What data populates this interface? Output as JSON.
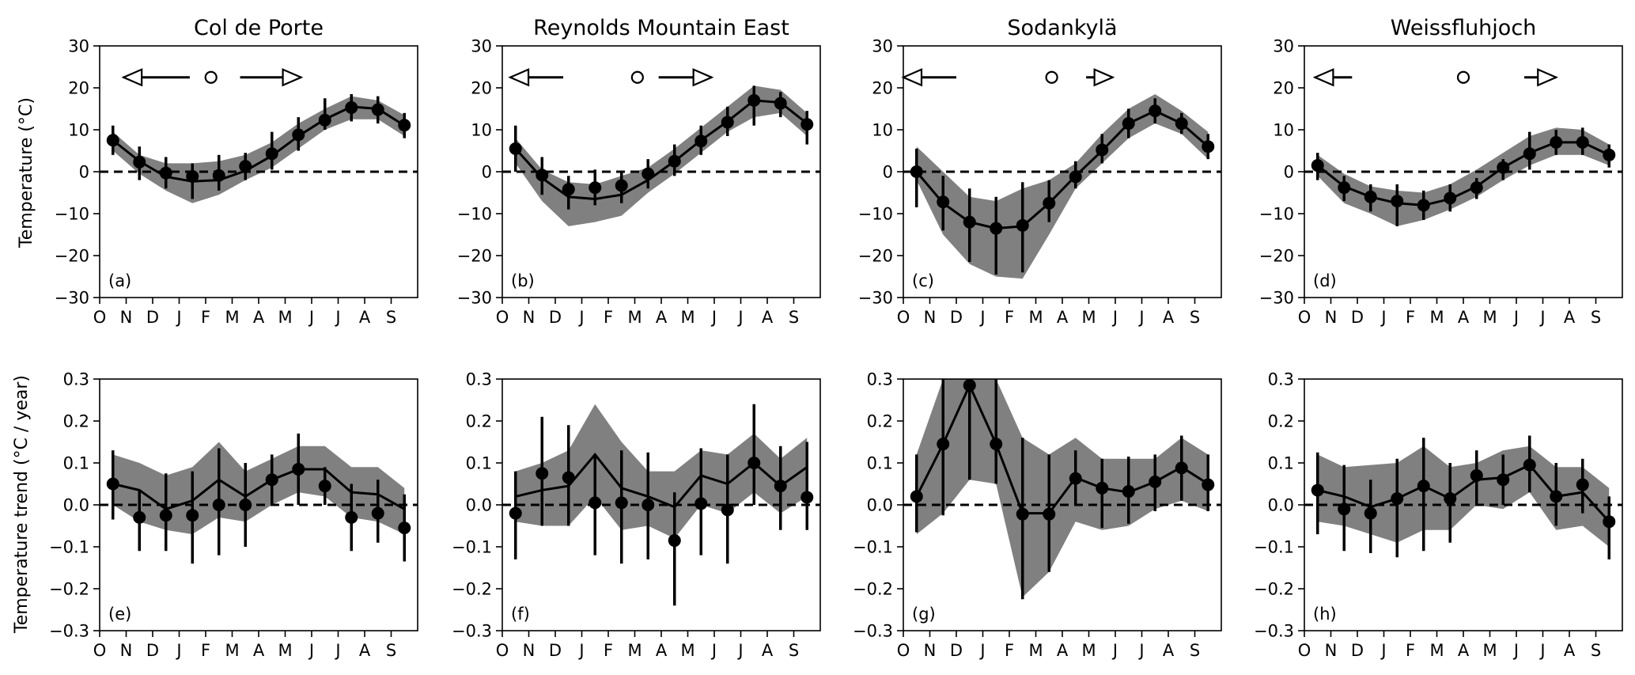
{
  "figure": {
    "row_ylabels": [
      "Temperature ($^\\circ$C)",
      "Temperature trend ($^\\circ$C / year)"
    ],
    "row_ylabels_display": [
      "Temperature (°C)",
      "Temperature trend (°C / year)"
    ],
    "month_ticks": [
      "O",
      "N",
      "D",
      "J",
      "F",
      "M",
      "A",
      "M",
      "J",
      "J",
      "A",
      "S"
    ],
    "colors": {
      "band": "#808080",
      "line": "#000000",
      "zero_line": "#000000"
    }
  },
  "chart_data": [
    {
      "type": "line",
      "id": "a",
      "panel_label": "(a)",
      "title": "Col de Porte",
      "ylim": [
        -30,
        30
      ],
      "yticks": [
        30,
        20,
        10,
        0,
        -10,
        -20,
        -30
      ],
      "x_month_offset": [
        0.5,
        1.5,
        2.5,
        3.5,
        4.5,
        5.5,
        6.5,
        7.5,
        8.5,
        9.5,
        10.5,
        11.5
      ],
      "series": [
        {
          "line": [
            7.5,
            2.5,
            -1.2,
            -2.3,
            -2.0,
            0.2,
            3.8,
            8.5,
            12.5,
            15.5,
            15.0,
            11.0
          ]
        },
        {
          "band_upper": [
            9.5,
            4.0,
            2.0,
            2.0,
            2.5,
            4.0,
            7.0,
            11.5,
            15.0,
            18.0,
            17.0,
            13.5
          ]
        },
        {
          "band_lower": [
            5.0,
            -0.5,
            -4.5,
            -7.5,
            -5.5,
            -2.0,
            1.0,
            5.5,
            10.0,
            12.5,
            12.5,
            8.5
          ]
        },
        {
          "point_x": [
            0.5,
            1.5,
            2.5,
            3.5,
            4.5,
            5.5,
            6.5,
            7.5,
            8.5,
            9.5,
            10.5,
            11.5
          ]
        },
        {
          "point_y": [
            7.5,
            2.3,
            -0.3,
            -1.1,
            -0.9,
            1.3,
            4.3,
            8.8,
            12.3,
            15.3,
            14.8,
            11.1
          ]
        },
        {
          "err_low": [
            4.0,
            -2.0,
            -4.0,
            -6.5,
            -4.5,
            -2.0,
            0.5,
            5.0,
            10.0,
            12.0,
            11.5,
            8.0
          ]
        },
        {
          "err_high": [
            11.0,
            6.0,
            3.5,
            2.0,
            4.0,
            4.5,
            9.5,
            13.0,
            17.5,
            18.5,
            18.0,
            14.0
          ]
        }
      ],
      "markers": {
        "left_arrow": [
          0.9,
          3.4
        ],
        "circle": 4.2,
        "right_arrow": [
          5.3,
          7.6
        ],
        "y": 22.5
      }
    },
    {
      "type": "line",
      "id": "b",
      "panel_label": "(b)",
      "title": "Reynolds Mountain East",
      "ylim": [
        -30,
        30
      ],
      "yticks": [
        30,
        20,
        10,
        0,
        -10,
        -20,
        -30
      ],
      "series": [
        {
          "line": [
            5.5,
            -1.5,
            -6.0,
            -6.5,
            -5.5,
            -2.0,
            2.5,
            7.5,
            12.0,
            17.0,
            16.5,
            11.5
          ]
        },
        {
          "band_upper": [
            8.0,
            0.5,
            -2.5,
            -3.0,
            -1.0,
            1.0,
            5.5,
            10.5,
            15.5,
            20.5,
            19.5,
            14.0
          ]
        },
        {
          "band_lower": [
            2.0,
            -7.0,
            -13.0,
            -12.0,
            -10.5,
            -5.0,
            -0.5,
            4.5,
            9.5,
            13.0,
            14.0,
            8.5
          ]
        },
        {
          "point_x": [
            0.5,
            1.5,
            2.5,
            3.5,
            4.5,
            5.5,
            6.5,
            7.5,
            8.5,
            9.5,
            10.5,
            11.5
          ]
        },
        {
          "point_y": [
            5.5,
            -0.8,
            -4.2,
            -3.8,
            -3.3,
            -0.5,
            2.5,
            7.3,
            11.8,
            17.0,
            16.3,
            11.3
          ]
        },
        {
          "err_low": [
            0.0,
            -5.5,
            -9.0,
            -8.0,
            -7.5,
            -4.0,
            -1.0,
            4.0,
            8.5,
            11.0,
            13.0,
            6.5
          ]
        },
        {
          "err_high": [
            11.0,
            3.5,
            -1.0,
            0.5,
            0.0,
            3.0,
            6.5,
            11.0,
            15.5,
            20.5,
            19.0,
            14.5
          ]
        }
      ],
      "markers": {
        "left_arrow": [
          0.3,
          2.3
        ],
        "circle": 5.1,
        "right_arrow": [
          5.9,
          7.9
        ],
        "y": 22.5
      }
    },
    {
      "type": "line",
      "id": "c",
      "panel_label": "(c)",
      "title": "Sodankylä",
      "ylim": [
        -30,
        30
      ],
      "yticks": [
        30,
        20,
        10,
        0,
        -10,
        -20,
        -30
      ],
      "series": [
        {
          "line": [
            0.0,
            -7.5,
            -12.0,
            -13.5,
            -13.0,
            -7.5,
            -1.0,
            5.0,
            11.5,
            14.5,
            11.5,
            6.0
          ]
        },
        {
          "band_upper": [
            6.0,
            0.0,
            -6.0,
            -7.0,
            -4.0,
            -2.0,
            2.0,
            9.0,
            15.0,
            18.5,
            14.5,
            9.5
          ]
        },
        {
          "band_lower": [
            -2.0,
            -15.0,
            -22.0,
            -25.0,
            -25.5,
            -15.0,
            -4.0,
            2.0,
            8.0,
            11.5,
            9.0,
            3.0
          ]
        },
        {
          "point_x": [
            0.5,
            1.5,
            2.5,
            3.5,
            4.5,
            5.5,
            6.5,
            7.5,
            8.5,
            9.5,
            10.5,
            11.5
          ]
        },
        {
          "point_y": [
            0.0,
            -7.2,
            -12.0,
            -13.5,
            -12.8,
            -7.5,
            -1.2,
            5.2,
            11.5,
            14.5,
            11.5,
            6.0
          ]
        },
        {
          "err_low": [
            -8.5,
            -14.0,
            -21.5,
            -24.5,
            -24.0,
            -12.0,
            -4.0,
            2.0,
            8.0,
            11.5,
            9.0,
            3.0
          ]
        },
        {
          "err_high": [
            5.5,
            -1.0,
            -4.0,
            -6.0,
            -2.5,
            -2.0,
            2.5,
            9.0,
            15.0,
            17.5,
            14.0,
            9.0
          ]
        }
      ],
      "markers": {
        "left_arrow": [
          0.0,
          2.0
        ],
        "circle": 5.6,
        "right_arrow": [
          6.9,
          7.9
        ],
        "y": 22.5
      }
    },
    {
      "type": "line",
      "id": "d",
      "panel_label": "(d)",
      "title": "Weissfluhjoch",
      "ylim": [
        -30,
        30
      ],
      "yticks": [
        30,
        20,
        10,
        0,
        -10,
        -20,
        -30
      ],
      "series": [
        {
          "line": [
            1.5,
            -3.5,
            -6.0,
            -7.5,
            -8.0,
            -6.5,
            -3.5,
            1.0,
            4.5,
            7.0,
            7.0,
            4.0
          ]
        },
        {
          "band_upper": [
            4.0,
            -0.5,
            -3.5,
            -4.5,
            -5.0,
            -3.0,
            0.5,
            4.5,
            8.5,
            10.5,
            10.0,
            6.5
          ]
        },
        {
          "band_lower": [
            -1.0,
            -7.5,
            -10.0,
            -13.0,
            -11.5,
            -9.0,
            -6.0,
            -2.0,
            1.5,
            4.0,
            4.0,
            1.5
          ]
        },
        {
          "point_x": [
            0.5,
            1.5,
            2.5,
            3.5,
            4.5,
            5.5,
            6.5,
            7.5,
            8.5,
            9.5,
            10.5,
            11.5
          ]
        },
        {
          "point_y": [
            1.5,
            -3.8,
            -6.0,
            -7.0,
            -8.0,
            -6.3,
            -3.8,
            1.0,
            4.3,
            7.0,
            7.0,
            4.0
          ]
        },
        {
          "err_low": [
            -2.0,
            -7.0,
            -9.5,
            -13.0,
            -11.5,
            -9.5,
            -6.5,
            -2.0,
            0.5,
            4.0,
            4.0,
            1.0
          ]
        },
        {
          "err_high": [
            4.5,
            -1.0,
            -3.0,
            -3.0,
            -4.5,
            -3.0,
            -1.5,
            3.0,
            9.5,
            10.0,
            10.5,
            6.5
          ]
        }
      ],
      "markers": {
        "left_arrow": [
          0.4,
          1.8
        ],
        "circle": 6.0,
        "right_arrow": [
          8.3,
          9.5
        ],
        "y": 22.5
      }
    },
    {
      "type": "line",
      "id": "e",
      "panel_label": "(e)",
      "title": "",
      "ylim": [
        -0.3,
        0.3
      ],
      "yticks": [
        0.3,
        0.2,
        0.1,
        0.0,
        -0.1,
        -0.2,
        -0.3
      ],
      "series": [
        {
          "line": [
            0.05,
            0.035,
            -0.01,
            0.01,
            0.06,
            0.02,
            0.06,
            0.085,
            0.085,
            0.03,
            0.025,
            -0.01
          ]
        },
        {
          "band_upper": [
            0.12,
            0.1,
            0.07,
            0.09,
            0.15,
            0.08,
            0.11,
            0.14,
            0.14,
            0.09,
            0.09,
            0.04
          ]
        },
        {
          "band_lower": [
            0.0,
            -0.04,
            -0.06,
            -0.07,
            -0.03,
            -0.04,
            0.0,
            0.03,
            0.02,
            -0.03,
            -0.04,
            -0.07
          ]
        },
        {
          "point_x": [
            0.5,
            1.5,
            2.5,
            3.5,
            4.5,
            5.5,
            6.5,
            7.5,
            8.5,
            9.5,
            10.5,
            11.5
          ]
        },
        {
          "point_y": [
            0.05,
            -0.03,
            -0.025,
            -0.025,
            0.0,
            0.0,
            0.06,
            0.085,
            0.045,
            -0.03,
            -0.02,
            -0.055
          ]
        },
        {
          "err_low": [
            -0.035,
            -0.11,
            -0.11,
            -0.14,
            -0.12,
            -0.1,
            0.0,
            0.0,
            0.0,
            -0.11,
            -0.09,
            -0.135
          ]
        },
        {
          "err_high": [
            0.13,
            0.035,
            0.075,
            0.08,
            0.135,
            0.1,
            0.12,
            0.17,
            0.09,
            0.05,
            0.06,
            0.025
          ]
        }
      ]
    },
    {
      "type": "line",
      "id": "f",
      "panel_label": "(f)",
      "title": "",
      "ylim": [
        -0.3,
        0.3
      ],
      "yticks": [
        0.3,
        0.2,
        0.1,
        0.0,
        -0.1,
        -0.2,
        -0.3
      ],
      "series": [
        {
          "line": [
            0.02,
            0.035,
            0.045,
            0.12,
            0.04,
            0.02,
            -0.005,
            0.07,
            0.05,
            0.1,
            0.045,
            0.09
          ]
        },
        {
          "band_upper": [
            0.08,
            0.1,
            0.13,
            0.24,
            0.15,
            0.08,
            0.08,
            0.13,
            0.12,
            0.17,
            0.11,
            0.16
          ]
        },
        {
          "band_lower": [
            -0.04,
            -0.05,
            -0.05,
            0.02,
            -0.06,
            -0.05,
            -0.08,
            0.0,
            -0.02,
            0.03,
            -0.02,
            0.02
          ]
        },
        {
          "point_x": [
            0.5,
            1.5,
            2.5,
            3.5,
            4.5,
            5.5,
            6.5,
            7.5,
            8.5,
            9.5,
            10.5,
            11.5
          ]
        },
        {
          "point_y": [
            -0.02,
            0.075,
            0.065,
            0.005,
            0.005,
            0.0,
            -0.085,
            0.003,
            -0.012,
            0.1,
            0.045,
            0.018
          ]
        },
        {
          "err_low": [
            -0.13,
            -0.05,
            -0.05,
            -0.12,
            -0.14,
            -0.13,
            -0.24,
            -0.12,
            -0.14,
            0.0,
            -0.06,
            -0.06
          ]
        },
        {
          "err_high": [
            0.08,
            0.21,
            0.19,
            0.12,
            0.13,
            0.125,
            0.03,
            0.135,
            0.12,
            0.24,
            0.14,
            0.15
          ]
        }
      ]
    },
    {
      "type": "line",
      "id": "g",
      "panel_label": "(g)",
      "title": "",
      "ylim": [
        -0.3,
        0.3
      ],
      "yticks": [
        0.3,
        0.2,
        0.1,
        0.0,
        -0.1,
        -0.2,
        -0.3
      ],
      "series": [
        {
          "line": [
            0.02,
            0.145,
            0.285,
            0.145,
            -0.02,
            -0.02,
            0.065,
            0.04,
            0.03,
            0.055,
            0.09,
            0.05
          ]
        },
        {
          "band_upper": [
            0.12,
            0.3,
            0.3,
            0.3,
            0.16,
            0.12,
            0.16,
            0.11,
            0.11,
            0.11,
            0.16,
            0.12
          ]
        },
        {
          "band_lower": [
            -0.07,
            -0.02,
            0.06,
            0.05,
            -0.22,
            -0.16,
            -0.04,
            -0.06,
            -0.05,
            -0.01,
            0.01,
            -0.015
          ]
        },
        {
          "point_x": [
            0.5,
            1.5,
            2.5,
            3.5,
            4.5,
            5.5,
            6.5,
            7.5,
            8.5,
            9.5,
            10.5,
            11.5
          ]
        },
        {
          "point_y": [
            0.02,
            0.145,
            0.285,
            0.145,
            -0.022,
            -0.022,
            0.063,
            0.04,
            0.032,
            0.055,
            0.088,
            0.048
          ]
        },
        {
          "err_low": [
            -0.065,
            -0.025,
            0.06,
            0.05,
            -0.225,
            -0.16,
            0.0,
            -0.055,
            -0.045,
            -0.015,
            0.01,
            -0.015
          ]
        },
        {
          "err_high": [
            0.12,
            0.3,
            0.3,
            0.3,
            0.16,
            0.12,
            0.13,
            0.11,
            0.115,
            0.12,
            0.165,
            0.12
          ]
        }
      ]
    },
    {
      "type": "line",
      "id": "h",
      "panel_label": "(h)",
      "title": "",
      "ylim": [
        -0.3,
        0.3
      ],
      "yticks": [
        0.3,
        0.2,
        0.1,
        0.0,
        -0.1,
        -0.2,
        -0.3
      ],
      "series": [
        {
          "line": [
            0.035,
            0.02,
            -0.005,
            0.015,
            0.045,
            0.015,
            0.06,
            0.065,
            0.095,
            0.02,
            0.03,
            -0.04
          ]
        },
        {
          "band_upper": [
            0.12,
            0.09,
            0.095,
            0.1,
            0.14,
            0.09,
            0.1,
            0.13,
            0.14,
            0.09,
            0.09,
            0.04
          ]
        },
        {
          "band_lower": [
            -0.04,
            -0.05,
            -0.07,
            -0.09,
            -0.06,
            -0.06,
            0.0,
            -0.01,
            0.03,
            -0.06,
            -0.05,
            -0.1
          ]
        },
        {
          "point_x": [
            0.5,
            1.5,
            2.5,
            3.5,
            4.5,
            5.5,
            6.5,
            7.5,
            8.5,
            9.5,
            10.5,
            11.5
          ]
        },
        {
          "point_y": [
            0.035,
            -0.01,
            -0.02,
            0.015,
            0.045,
            0.015,
            0.07,
            0.06,
            0.095,
            0.02,
            0.048,
            -0.04
          ]
        },
        {
          "err_low": [
            -0.07,
            -0.11,
            -0.115,
            -0.125,
            -0.11,
            -0.09,
            0.0,
            0.0,
            0.03,
            -0.05,
            -0.02,
            -0.13
          ]
        },
        {
          "err_high": [
            0.125,
            0.095,
            0.06,
            0.11,
            0.16,
            0.1,
            0.13,
            0.12,
            0.165,
            0.1,
            0.11,
            0.02
          ]
        }
      ]
    }
  ]
}
